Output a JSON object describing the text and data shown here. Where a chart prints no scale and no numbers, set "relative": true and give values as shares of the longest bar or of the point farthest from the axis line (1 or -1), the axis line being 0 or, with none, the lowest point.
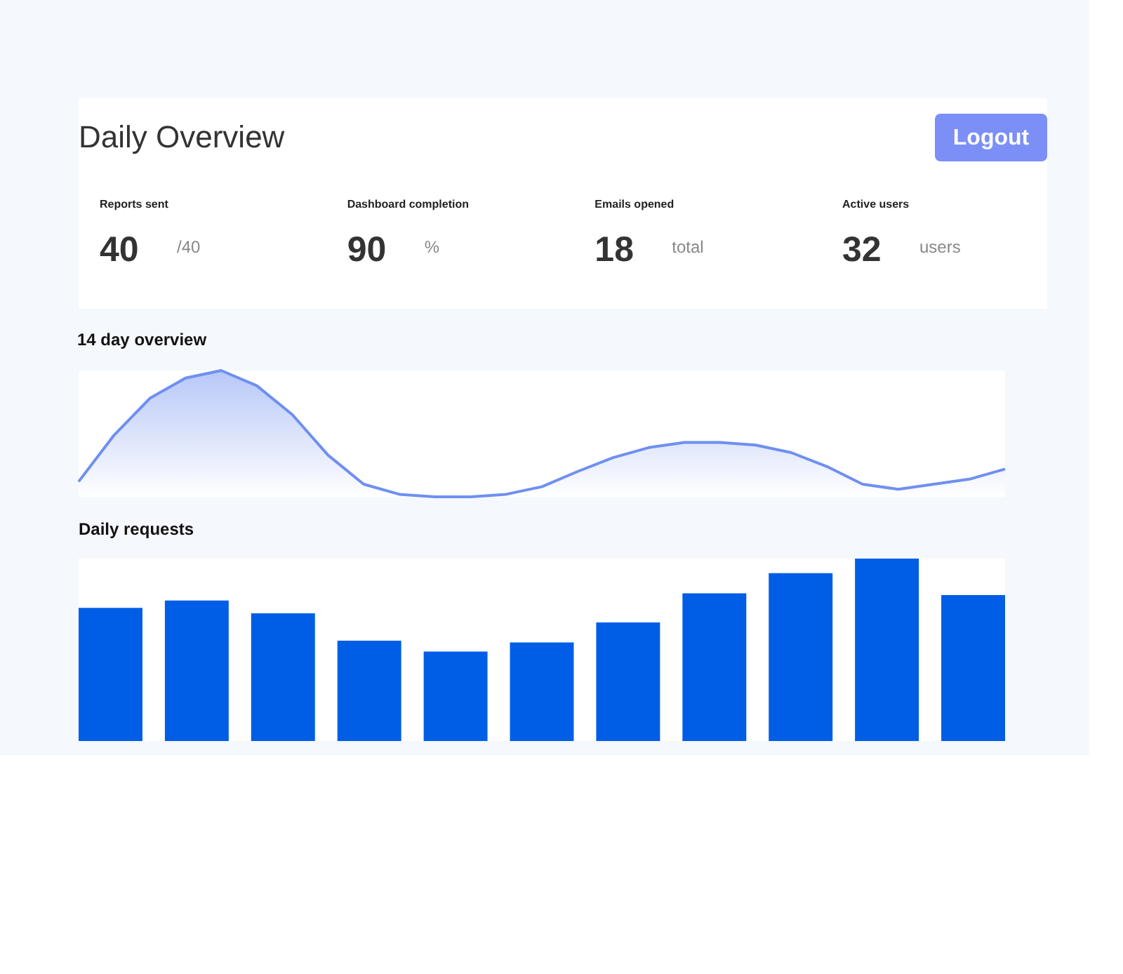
{
  "chart_data": [
    {
      "type": "other",
      "title": "Daily Overview",
      "annotations": [
        "Reports sent",
        "40",
        "/40",
        "Dashboard completion",
        "90",
        "%",
        "Emails opened",
        "18",
        "total",
        "Active users",
        "32",
        "users",
        "Logout"
      ]
    },
    {
      "type": "area",
      "title": "14 day overview",
      "relative": true,
      "categories": [
        null,
        null,
        null,
        null,
        null,
        null,
        null,
        null,
        null,
        null,
        null,
        null,
        null,
        null,
        null,
        null,
        null,
        null,
        null,
        null,
        null,
        null,
        null,
        null,
        null,
        null,
        null
      ],
      "series": [
        {
          "color": "#6f8ff0",
          "values": [
            0.12,
            0.49,
            0.78,
            0.94,
            1.0,
            0.88,
            0.65,
            0.33,
            0.1,
            0.02,
            0.0,
            0.0,
            0.02,
            0.08,
            0.2,
            0.31,
            0.39,
            0.43,
            0.43,
            0.41,
            0.35,
            0.24,
            0.1,
            0.06,
            0.1,
            0.14,
            0.22
          ]
        }
      ]
    },
    {
      "type": "bar",
      "title": "Daily requests",
      "relative": true,
      "categories": [
        null,
        null,
        null,
        null,
        null,
        null,
        null,
        null,
        null,
        null,
        null
      ],
      "values": [
        0.73,
        0.77,
        0.7,
        0.55,
        0.49,
        0.54,
        0.65,
        0.81,
        0.92,
        1.0,
        0.8
      ],
      "color": "#005ee6"
    }
  ]
}
